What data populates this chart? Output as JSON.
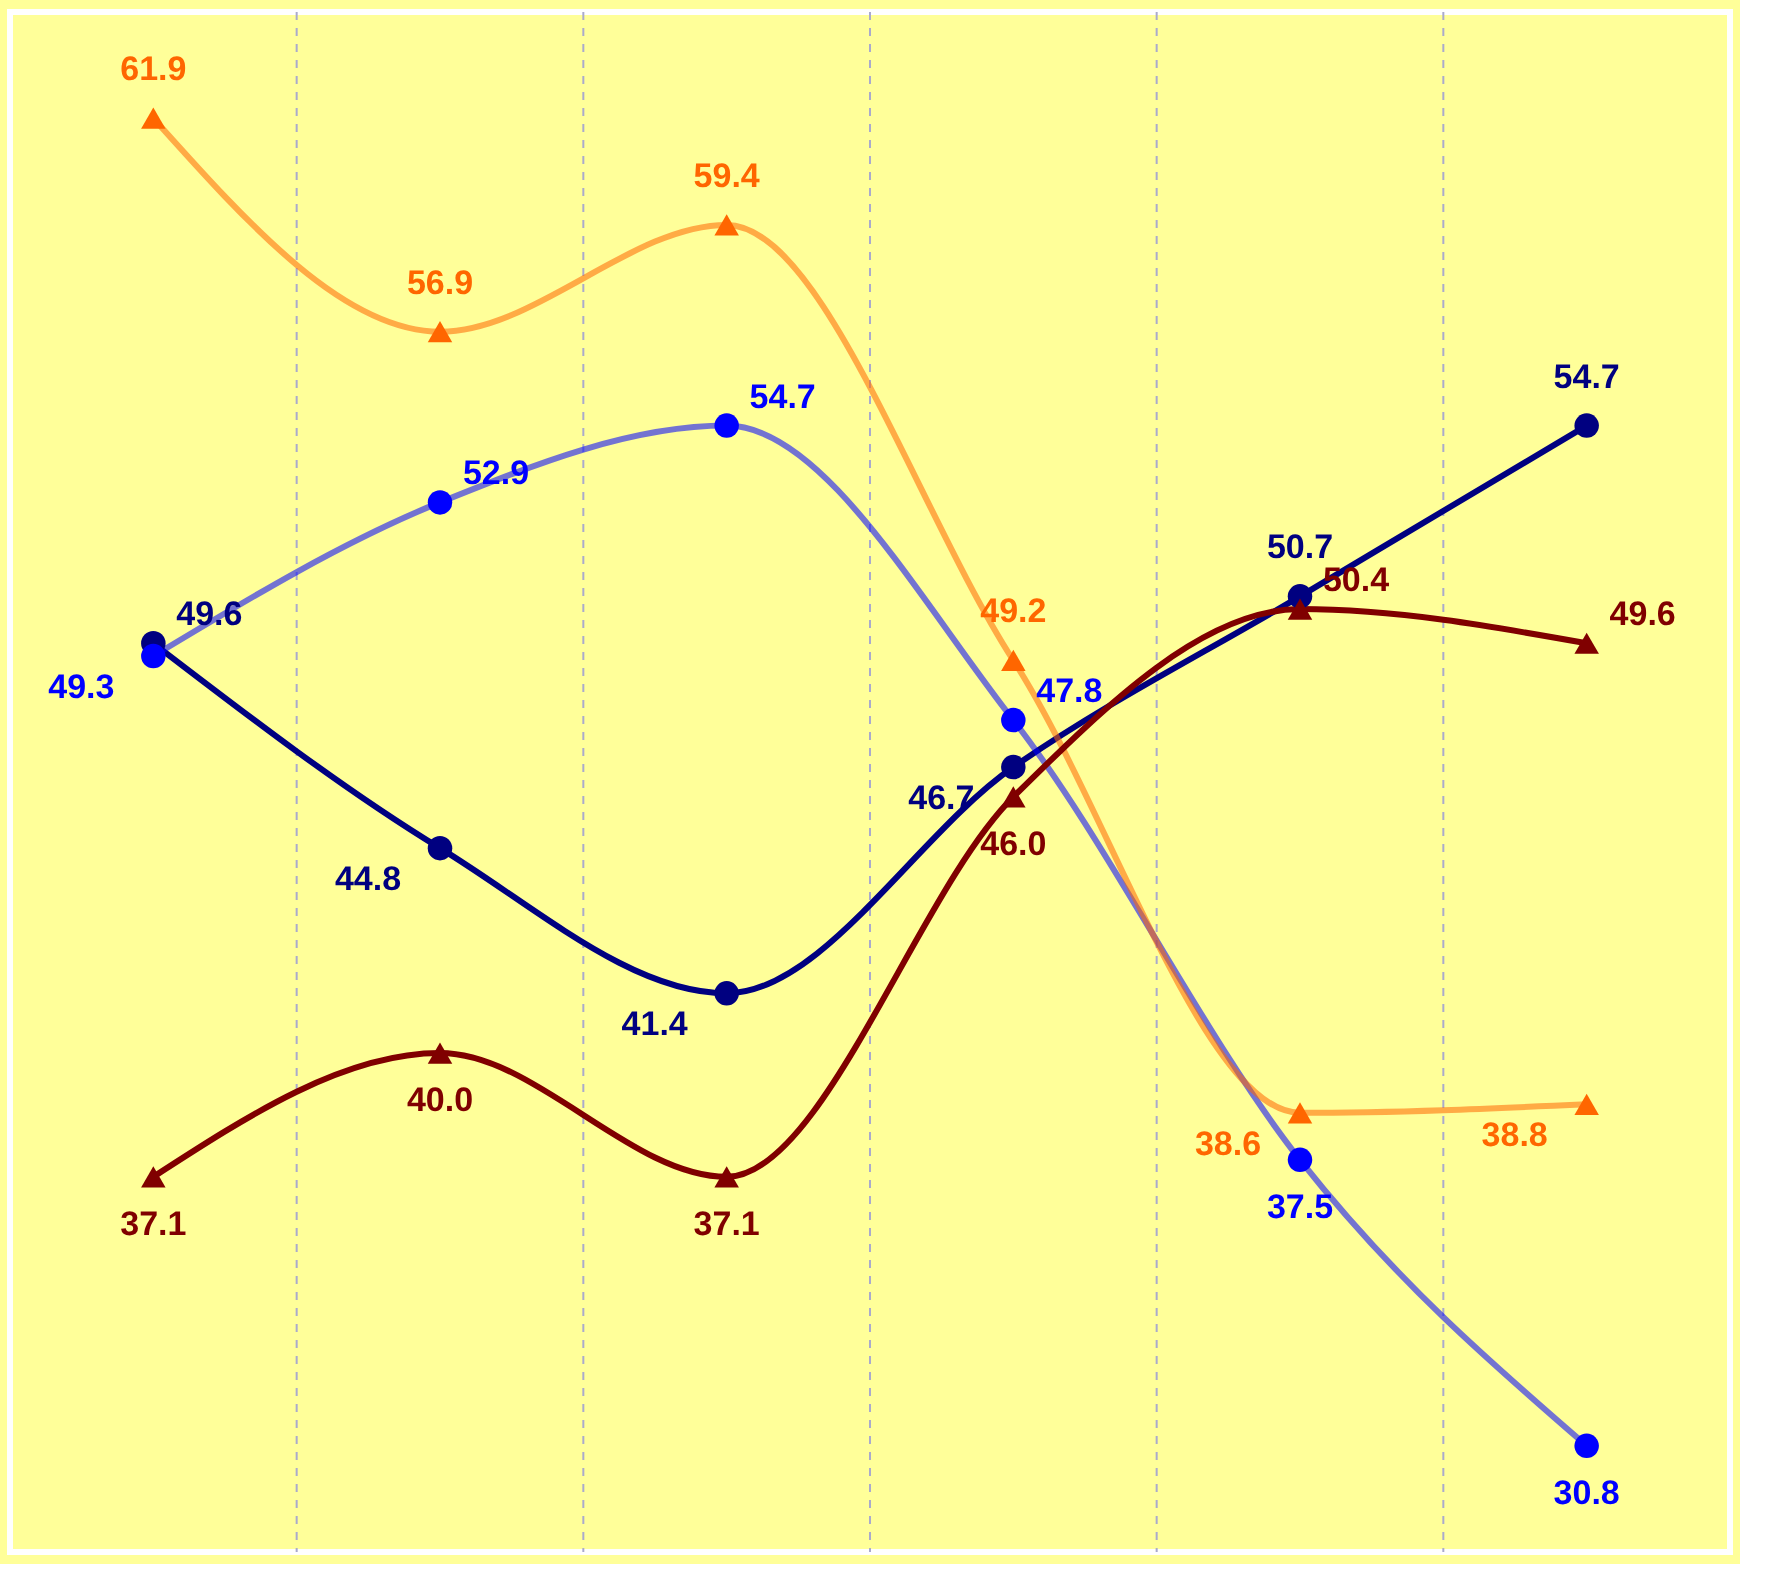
{
  "chart_data": {
    "type": "line",
    "categories": [
      null,
      null,
      null,
      null,
      null,
      null
    ],
    "series": [
      {
        "color": "#000080",
        "marker": "circle",
        "values": [
          49.6,
          44.8,
          41.4,
          46.7,
          50.7,
          54.7
        ],
        "value_labels": [
          "49.6",
          "44.8",
          "41.4",
          "46.7",
          "50.7",
          "54.7"
        ]
      },
      {
        "color": "#0000ff",
        "marker": "circle",
        "values": [
          49.3,
          52.9,
          54.7,
          47.8,
          37.5,
          30.8
        ],
        "value_labels": [
          "49.3",
          "52.9",
          "54.7",
          "47.8",
          "37.5",
          "30.8"
        ]
      },
      {
        "color": "#ff6600",
        "marker": "triangle",
        "values": [
          61.9,
          56.9,
          59.4,
          49.2,
          38.6,
          38.8
        ],
        "value_labels": [
          "61.9",
          "56.9",
          "59.4",
          "49.2",
          "38.6",
          "38.8"
        ]
      },
      {
        "color": "#800000",
        "marker": "triangle",
        "values": [
          37.1,
          40.0,
          37.1,
          46.0,
          50.4,
          49.6
        ],
        "value_labels": [
          "37.1",
          "40.0",
          "37.1",
          "46.0",
          "50.4",
          "49.6"
        ]
      }
    ],
    "grid": "x"
  }
}
